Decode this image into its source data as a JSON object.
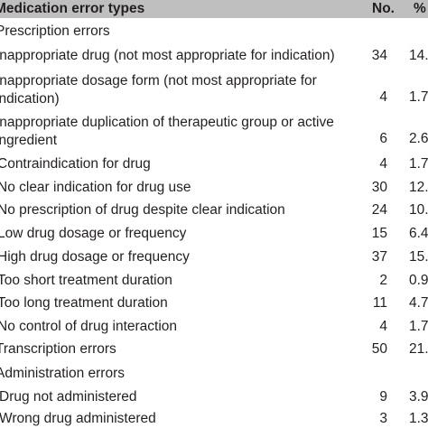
{
  "table": {
    "header": {
      "type": "Medication error types",
      "no": "No.",
      "pct": "%"
    },
    "rows": [
      {
        "label": "Prescription errors",
        "no": "",
        "pct": ""
      },
      {
        "label": "Inappropriate drug (not most appropriate for indication)",
        "no": "34",
        "pct": "14."
      },
      {
        "label": "Inappropriate dosage form (not most appropriate for indication)",
        "no": "4",
        "pct": "1.7"
      },
      {
        "label": "Inappropriate duplication of therapeutic group or active ingredient",
        "no": "6",
        "pct": "2.6"
      },
      {
        "label": "Contraindication for drug",
        "no": "4",
        "pct": "1.7"
      },
      {
        "label": "No clear indication for drug use",
        "no": "30",
        "pct": "12."
      },
      {
        "label": "No prescription of drug despite clear indication",
        "no": "24",
        "pct": "10."
      },
      {
        "label": "Low drug dosage or frequency",
        "no": "15",
        "pct": "6.4"
      },
      {
        "label": "High drug dosage or frequency",
        "no": "37",
        "pct": "15."
      },
      {
        "label": "Too short treatment duration",
        "no": "2",
        "pct": "0.9"
      },
      {
        "label": "Too long treatment duration",
        "no": "11",
        "pct": "4.7"
      },
      {
        "label": "No control of drug interaction",
        "no": "4",
        "pct": "1.7"
      },
      {
        "label": "Transcription errors",
        "no": "50",
        "pct": "21."
      },
      {
        "label": "Administration errors",
        "no": "",
        "pct": ""
      },
      {
        "label": "Drug not administered",
        "no": "9",
        "pct": "3.9"
      },
      {
        "label": "Wrong drug administered",
        "no": "3",
        "pct": "1.3"
      }
    ]
  }
}
